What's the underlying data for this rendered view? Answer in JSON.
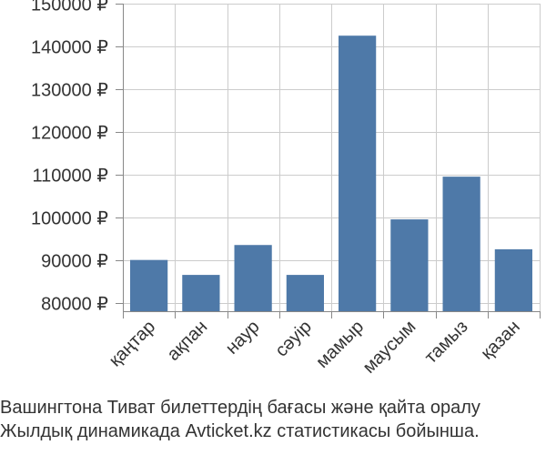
{
  "colors": {
    "bar": "#4e79a8",
    "grid": "#cccccc",
    "axis": "#888888",
    "text": "#333333"
  },
  "caption": {
    "line1": "Вашингтона Тиват билеттердің бағасы және қайта оралу",
    "line2": "Жылдық динамикада Avticket.kz статистикасы бойынша."
  },
  "chart_data": {
    "type": "bar",
    "categories": [
      "қаңтар",
      "ақпан",
      "наур",
      "сәуір",
      "мамыр",
      "маусым",
      "тамыз",
      "қазан"
    ],
    "values": [
      90000,
      86500,
      93500,
      86500,
      142500,
      99500,
      109500,
      92500
    ],
    "ylim": [
      78000,
      150000
    ],
    "yticks": [
      80000,
      90000,
      100000,
      110000,
      120000,
      130000,
      140000,
      150000
    ],
    "ytick_labels": [
      "80000 ₽",
      "90000 ₽",
      "100000 ₽",
      "110000 ₽",
      "120000 ₽",
      "130000 ₽",
      "140000 ₽",
      "150000 ₽"
    ],
    "grid": true,
    "title": "",
    "xlabel": "",
    "ylabel": ""
  }
}
